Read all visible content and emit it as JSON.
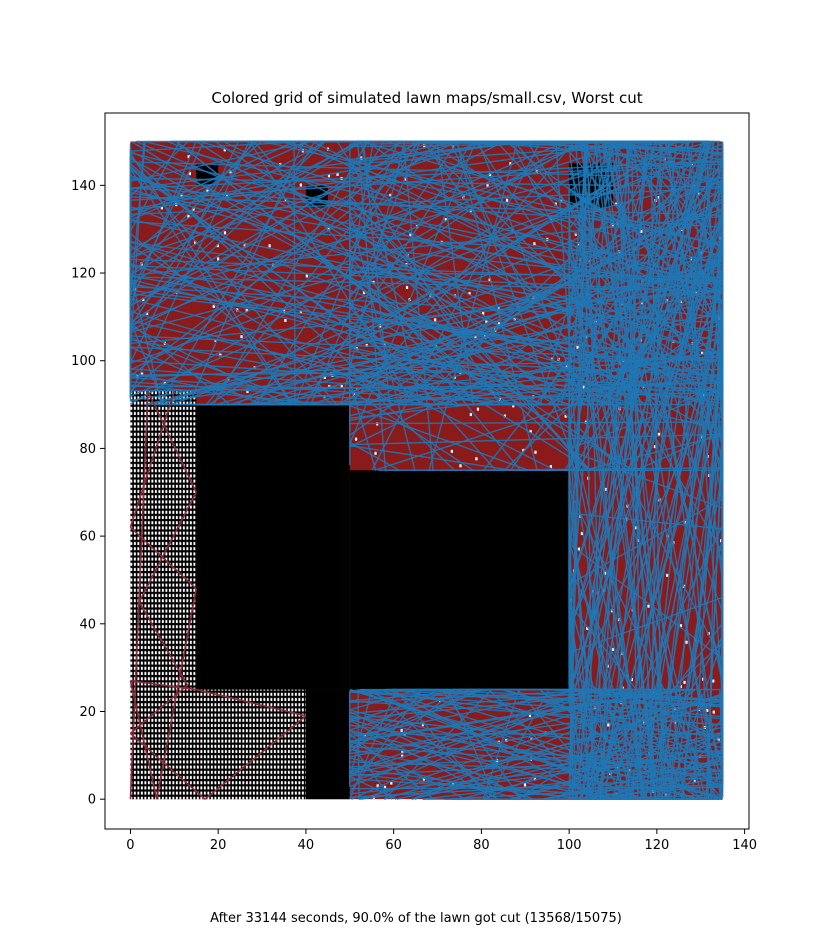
{
  "chart_data": {
    "type": "heatmap",
    "title": "Colored grid of simulated lawn maps/small.csv, Worst cut",
    "xlim": [
      -5.8,
      141
    ],
    "ylim": [
      -6.8,
      156.5
    ],
    "x_ticks": [
      0,
      20,
      40,
      60,
      80,
      100,
      120,
      140
    ],
    "y_ticks": [
      0,
      20,
      40,
      60,
      80,
      100,
      120,
      140
    ],
    "grid": false,
    "colors": {
      "uncut": "#ffffff",
      "obstacle": "#000000",
      "cut": "#8b1a1a",
      "path": "#1f77b4"
    },
    "lawn_extent": {
      "x": [
        0,
        135
      ],
      "y": [
        0,
        150
      ]
    },
    "obstacles": [
      {
        "x": [
          15,
          50
        ],
        "y": [
          25,
          90
        ]
      },
      {
        "x": [
          50,
          100
        ],
        "y": [
          25,
          75
        ]
      },
      {
        "x": [
          40,
          50
        ],
        "y": [
          0,
          25
        ]
      },
      {
        "x": [
          100,
          110
        ],
        "y": [
          135,
          145
        ]
      },
      {
        "x": [
          15,
          20
        ],
        "y": [
          140,
          145
        ]
      },
      {
        "x": [
          40,
          45
        ],
        "y": [
          135,
          140
        ]
      }
    ],
    "uncut_regions": [
      {
        "x": [
          0,
          15
        ],
        "y": [
          0,
          93
        ]
      },
      {
        "x": [
          15,
          40
        ],
        "y": [
          0,
          25
        ]
      }
    ],
    "caption": "After 33144 seconds, 90.0% of the lawn got cut (13568/15075)"
  }
}
